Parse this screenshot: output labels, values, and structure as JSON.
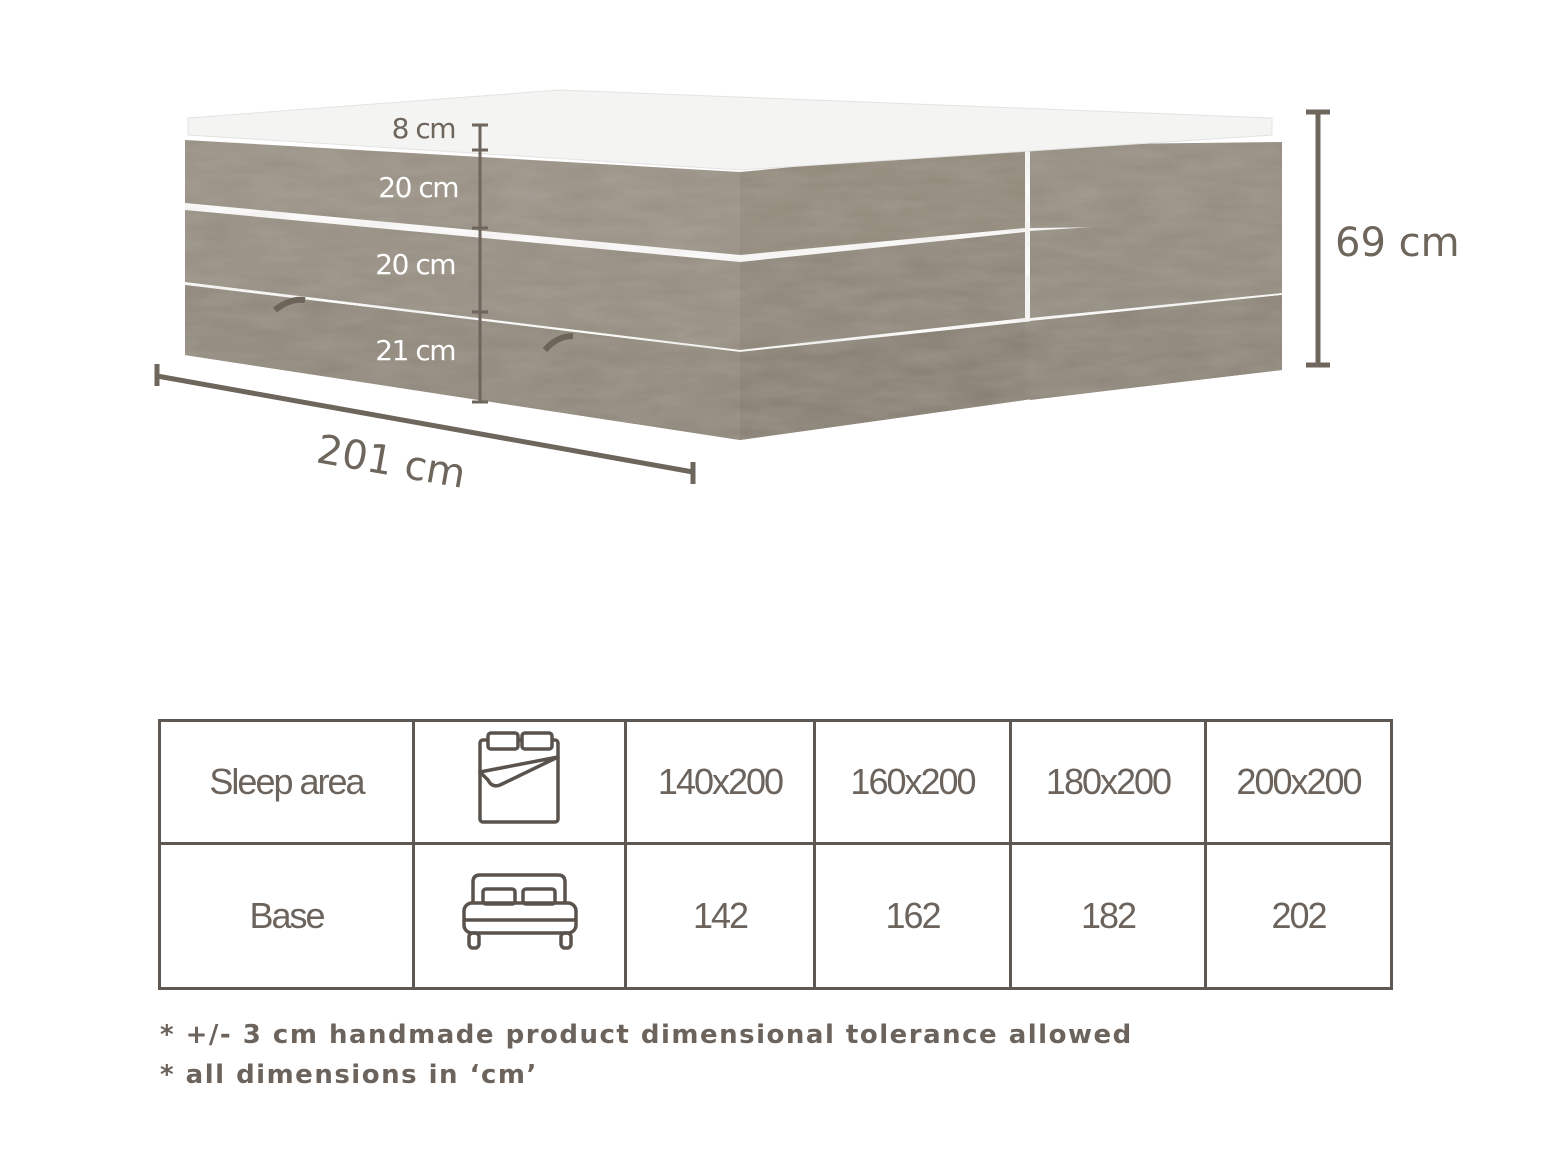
{
  "dimensions": {
    "topper": "8 cm",
    "layer_top": "20 cm",
    "layer_middle": "20 cm",
    "layer_bottom": "21 cm",
    "total_height": "69 cm",
    "length": "201 cm"
  },
  "colors": {
    "fabric": "#8f877b",
    "dimension_line": "#6e655c",
    "table_border": "#5f5751",
    "text": "#6b635c"
  },
  "table": {
    "rows": [
      {
        "label": "Sleep area",
        "icon": "mattress-duvet-icon",
        "values": [
          "140x200",
          "160x200",
          "180x200",
          "200x200"
        ]
      },
      {
        "label": "Base",
        "icon": "double-bed-icon",
        "values": [
          "142",
          "162",
          "182",
          "202"
        ]
      }
    ]
  },
  "notes": [
    "* +/- 3 cm handmade product dimensional tolerance allowed",
    "* all dimensions in ‘cm’"
  ]
}
